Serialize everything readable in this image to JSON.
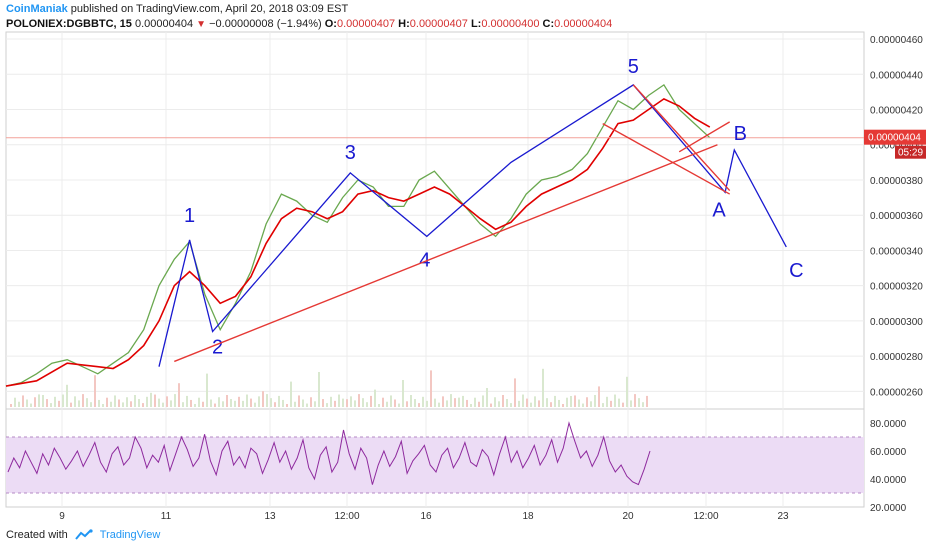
{
  "header": {
    "author": "CoinManiak",
    "published_text": "published on TradingView.com, April 20, 2018 03:09 EST",
    "symbol": "POLONIEX:DGBBTC, 15",
    "last_price": "0.00000404",
    "change": "−0.00000008 (−1.94%)",
    "open_label": "O:",
    "open": "0.00000407",
    "high_label": "H:",
    "high": "0.00000407",
    "low_label": "L:",
    "low": "0.00000400",
    "close_label": "C:",
    "close": "0.00000404"
  },
  "colors": {
    "price": "#6aa84f",
    "ma": "#e00000",
    "wave": "#1a1ad0",
    "trend": "#e53935",
    "rsi": "#8e2a9e",
    "rsi_band": "#ecdcf5",
    "marker_bg": "#e53935",
    "accent": "#2196f3"
  },
  "price_marker": {
    "value": "0.00000404",
    "countdown": "05:29"
  },
  "chart_data": [
    {
      "type": "line",
      "panel": "price",
      "y_axis_ticks": [
        "0.00000460",
        "0.00000440",
        "0.00000420",
        "0.00000400",
        "0.00000380",
        "0.00000360",
        "0.00000340",
        "0.00000320",
        "0.00000300",
        "0.00000280",
        "0.00000260"
      ],
      "x_axis_ticks": [
        "9",
        "11",
        "13",
        "12:00",
        "16",
        "18",
        "20",
        "12:00",
        "23"
      ],
      "ylim": [
        2.5e-06,
        4.64e-06
      ],
      "series": [
        {
          "role": "price",
          "points": [
            [
              0,
              2.63e-06
            ],
            [
              1,
              2.65e-06
            ],
            [
              2,
              2.7e-06
            ],
            [
              3,
              2.76e-06
            ],
            [
              4,
              2.78e-06
            ],
            [
              5,
              2.74e-06
            ],
            [
              6,
              2.7e-06
            ],
            [
              7,
              2.76e-06
            ],
            [
              8,
              2.82e-06
            ],
            [
              9,
              2.95e-06
            ],
            [
              10,
              3.2e-06
            ],
            [
              11,
              3.35e-06
            ],
            [
              12,
              3.45e-06
            ],
            [
              13,
              3.15e-06
            ],
            [
              14,
              2.95e-06
            ],
            [
              15,
              3.1e-06
            ],
            [
              16,
              3.28e-06
            ],
            [
              17,
              3.55e-06
            ],
            [
              18,
              3.72e-06
            ],
            [
              19,
              3.68e-06
            ],
            [
              20,
              3.6e-06
            ],
            [
              21,
              3.56e-06
            ],
            [
              22,
              3.7e-06
            ],
            [
              23,
              3.8e-06
            ],
            [
              24,
              3.76e-06
            ],
            [
              25,
              3.65e-06
            ],
            [
              26,
              3.65e-06
            ],
            [
              27,
              3.8e-06
            ],
            [
              28,
              3.85e-06
            ],
            [
              29,
              3.75e-06
            ],
            [
              30,
              3.65e-06
            ],
            [
              31,
              3.55e-06
            ],
            [
              32,
              3.48e-06
            ],
            [
              33,
              3.58e-06
            ],
            [
              34,
              3.72e-06
            ],
            [
              35,
              3.8e-06
            ],
            [
              36,
              3.82e-06
            ],
            [
              37,
              3.86e-06
            ],
            [
              38,
              3.95e-06
            ],
            [
              39,
              4.1e-06
            ],
            [
              40,
              4.25e-06
            ],
            [
              41,
              4.2e-06
            ],
            [
              42,
              4.28e-06
            ],
            [
              43,
              4.34e-06
            ],
            [
              44,
              4.2e-06
            ],
            [
              45,
              4.12e-06
            ],
            [
              46,
              4.04e-06
            ]
          ]
        },
        {
          "role": "moving-average",
          "points": [
            [
              0,
              2.63e-06
            ],
            [
              2,
              2.66e-06
            ],
            [
              4,
              2.76e-06
            ],
            [
              6,
              2.74e-06
            ],
            [
              7,
              2.73e-06
            ],
            [
              8,
              2.78e-06
            ],
            [
              9,
              2.86e-06
            ],
            [
              10,
              3e-06
            ],
            [
              11,
              3.2e-06
            ],
            [
              12,
              3.28e-06
            ],
            [
              13,
              3.2e-06
            ],
            [
              14,
              3.1e-06
            ],
            [
              15,
              3.14e-06
            ],
            [
              16,
              3.25e-06
            ],
            [
              17,
              3.44e-06
            ],
            [
              18,
              3.58e-06
            ],
            [
              19,
              3.64e-06
            ],
            [
              20,
              3.62e-06
            ],
            [
              21,
              3.58e-06
            ],
            [
              22,
              3.62e-06
            ],
            [
              23,
              3.72e-06
            ],
            [
              24,
              3.74e-06
            ],
            [
              25,
              3.7e-06
            ],
            [
              26,
              3.68e-06
            ],
            [
              27,
              3.72e-06
            ],
            [
              28,
              3.76e-06
            ],
            [
              29,
              3.72e-06
            ],
            [
              30,
              3.65e-06
            ],
            [
              31,
              3.58e-06
            ],
            [
              32,
              3.52e-06
            ],
            [
              33,
              3.56e-06
            ],
            [
              34,
              3.65e-06
            ],
            [
              35,
              3.72e-06
            ],
            [
              36,
              3.76e-06
            ],
            [
              37,
              3.8e-06
            ],
            [
              38,
              3.86e-06
            ],
            [
              39,
              3.98e-06
            ],
            [
              40,
              4.12e-06
            ],
            [
              41,
              4.14e-06
            ],
            [
              42,
              4.2e-06
            ],
            [
              43,
              4.26e-06
            ],
            [
              44,
              4.22e-06
            ],
            [
              45,
              4.15e-06
            ],
            [
              46,
              4.1e-06
            ]
          ]
        }
      ],
      "annotations": [
        {
          "kind": "wave-polyline",
          "labels": [
            "1",
            "2",
            "3",
            "4",
            "5",
            "A",
            "B",
            "C"
          ],
          "points": [
            [
              10,
              2.74e-06
            ],
            [
              12,
              3.46e-06
            ],
            [
              13.5,
              2.94e-06
            ],
            [
              22.5,
              3.84e-06
            ],
            [
              27.5,
              3.48e-06
            ],
            [
              33,
              3.9e-06
            ],
            [
              41,
              4.34e-06
            ],
            [
              47,
              3.73e-06
            ],
            [
              47.6,
              3.97e-06
            ],
            [
              51,
              3.42e-06
            ]
          ]
        },
        {
          "kind": "trendline",
          "from": [
            11,
            2.77e-06
          ],
          "to": [
            46.5,
            4e-06
          ]
        },
        {
          "kind": "trendline",
          "from": [
            41,
            4.34e-06
          ],
          "to": [
            47.3,
            3.74e-06
          ]
        },
        {
          "kind": "trendline",
          "from": [
            39,
            4.12e-06
          ],
          "to": [
            47.3,
            3.72e-06
          ]
        },
        {
          "kind": "trendline",
          "from": [
            44,
            3.96e-06
          ],
          "to": [
            47.3,
            4.13e-06
          ]
        }
      ]
    },
    {
      "type": "line",
      "panel": "rsi",
      "y_axis_ticks": [
        "80.0000",
        "60.0000",
        "40.0000",
        "20.0000"
      ],
      "ylim": [
        20,
        90
      ],
      "band": [
        30,
        70
      ],
      "series": [
        {
          "role": "rsi",
          "values": [
            45,
            55,
            48,
            60,
            52,
            44,
            58,
            50,
            62,
            55,
            47,
            53,
            60,
            49,
            57,
            66,
            52,
            45,
            58,
            63,
            50,
            55,
            70,
            62,
            48,
            57,
            52,
            64,
            46,
            58,
            70,
            61,
            49,
            55,
            72,
            53,
            43,
            60,
            67,
            50,
            56,
            48,
            62,
            58,
            44,
            54,
            66,
            52,
            60,
            47,
            55,
            68,
            48,
            40,
            57,
            63,
            45,
            52,
            75,
            58,
            47,
            62,
            55,
            36,
            50,
            60,
            49,
            56,
            67,
            44,
            53,
            58,
            64,
            50,
            45,
            57,
            62,
            48,
            55,
            66,
            52,
            49,
            61,
            56,
            43,
            58,
            70,
            52,
            60,
            48,
            55,
            64,
            50,
            57,
            68,
            52,
            62,
            80,
            67,
            55,
            60,
            49,
            57,
            70,
            53,
            45,
            50,
            42,
            38,
            36,
            47,
            60
          ]
        }
      ]
    }
  ],
  "footer": {
    "created_with": "Created with",
    "brand": "TradingView"
  }
}
